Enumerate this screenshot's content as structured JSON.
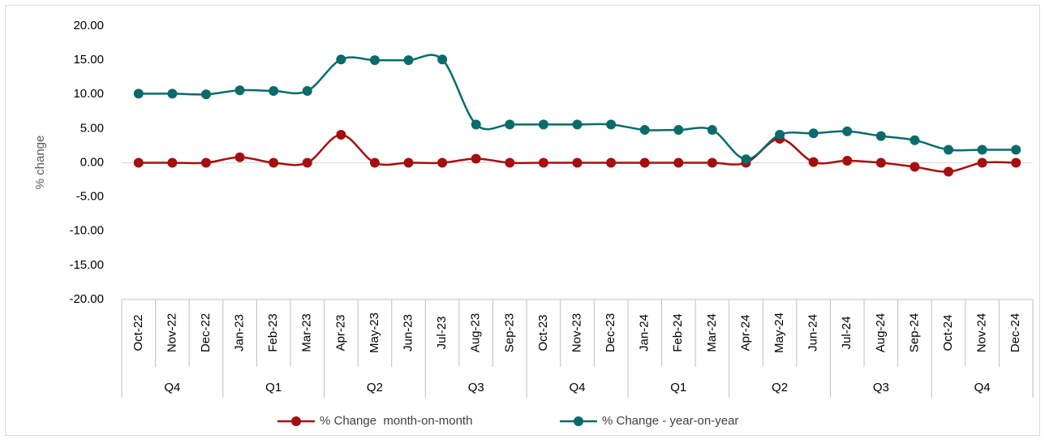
{
  "chart_data": {
    "type": "line",
    "ylabel": "% change",
    "categories": [
      "Oct-22",
      "Nov-22",
      "Dec-22",
      "Jan-23",
      "Feb-23",
      "Mar-23",
      "Apr-23",
      "May-23",
      "Jun-23",
      "Jul-23",
      "Aug-23",
      "Sep-23",
      "Oct-23",
      "Nov-23",
      "Dec-23",
      "Jan-24",
      "Feb-24",
      "Mar-24",
      "Apr-24",
      "May-24",
      "Jun-24",
      "Jul-24",
      "Aug-24",
      "Sep-24",
      "Oct-24",
      "Nov-24",
      "Dec-24"
    ],
    "quarters": [
      "Q4",
      "Q1",
      "Q2",
      "Q3",
      "Q4",
      "Q1",
      "Q2",
      "Q3",
      "Q4"
    ],
    "series": [
      {
        "name": "% Change  month-on-month",
        "color": "#a50f0f",
        "values": [
          0,
          0,
          0,
          0.8,
          0,
          0,
          4.1,
          0,
          0,
          0,
          0.6,
          0,
          0,
          0,
          0,
          0,
          0,
          0,
          0,
          3.5,
          0.1,
          0.3,
          0,
          -0.6,
          -1.3,
          0,
          0
        ]
      },
      {
        "name": "% Change - year-on-year",
        "color": "#0a6b6b",
        "values": [
          10.1,
          10.1,
          10.0,
          10.6,
          10.5,
          10.5,
          15.1,
          15.0,
          15.0,
          15.1,
          5.6,
          5.6,
          5.6,
          5.6,
          5.6,
          4.8,
          4.8,
          4.8,
          0.5,
          4.1,
          4.3,
          4.6,
          3.9,
          3.3,
          1.9,
          1.9,
          1.9
        ]
      }
    ],
    "ylim": [
      -20,
      20
    ],
    "yticks": [
      {
        "value": -20,
        "label": "-20.00"
      },
      {
        "value": -15,
        "label": "-15.00"
      },
      {
        "value": -10,
        "label": "-10.00"
      },
      {
        "value": -5,
        "label": "-5.00"
      },
      {
        "value": 0,
        "label": "0.00"
      },
      {
        "value": 5,
        "label": "5.00"
      },
      {
        "value": 10,
        "label": "10.00"
      },
      {
        "value": 15,
        "label": "15.00"
      },
      {
        "value": 20,
        "label": "20.00"
      }
    ],
    "legend": "bottom"
  }
}
